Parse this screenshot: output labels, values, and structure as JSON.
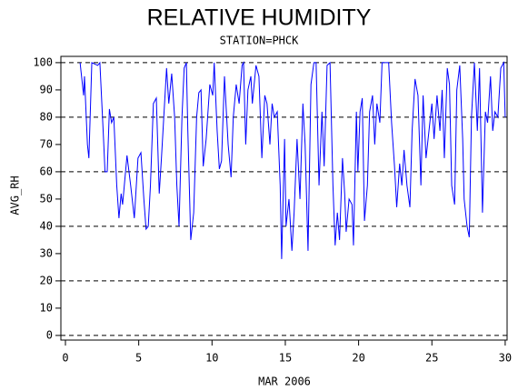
{
  "chart_data": {
    "type": "line",
    "title": "RELATIVE HUMIDITY",
    "subtitle": "STATION=PHCK",
    "x_label": "MAR 2006",
    "y_label": "AVG_RH",
    "xlim": [
      -0.31,
      30.13
    ],
    "ylim": [
      -1.7,
      102.3
    ],
    "xticks": [
      0,
      5,
      10,
      15,
      20,
      25,
      30
    ],
    "yticks": [
      0,
      10,
      20,
      30,
      40,
      50,
      60,
      70,
      80,
      90,
      100
    ],
    "ygrid": [
      0,
      20,
      40,
      60,
      80,
      100
    ],
    "x": [
      1.0,
      1.24,
      1.3,
      1.5,
      1.6,
      1.8,
      2.2,
      2.35,
      2.6,
      2.7,
      2.85,
      3.0,
      3.15,
      3.3,
      3.5,
      3.65,
      3.8,
      3.9,
      4.2,
      4.45,
      4.7,
      4.95,
      5.15,
      5.35,
      5.5,
      5.65,
      5.8,
      6.0,
      6.2,
      6.4,
      6.55,
      6.9,
      7.05,
      7.25,
      7.45,
      7.6,
      7.75,
      7.95,
      8.1,
      8.25,
      8.35,
      8.55,
      8.75,
      8.95,
      9.1,
      9.25,
      9.4,
      9.6,
      9.85,
      10.05,
      10.15,
      10.35,
      10.5,
      10.65,
      10.85,
      11.1,
      11.3,
      11.45,
      11.65,
      11.85,
      12.05,
      12.15,
      12.3,
      12.45,
      12.65,
      12.75,
      13.0,
      13.2,
      13.4,
      13.6,
      13.75,
      13.95,
      14.1,
      14.25,
      14.45,
      14.65,
      14.75,
      14.95,
      15.05,
      15.25,
      15.45,
      15.6,
      15.8,
      16.0,
      16.2,
      16.35,
      16.55,
      16.75,
      16.95,
      17.1,
      17.3,
      17.5,
      17.65,
      17.85,
      18.05,
      18.25,
      18.4,
      18.55,
      18.7,
      18.9,
      19.05,
      19.15,
      19.35,
      19.55,
      19.65,
      19.85,
      19.95,
      20.1,
      20.25,
      20.4,
      20.6,
      20.75,
      20.95,
      21.1,
      21.25,
      21.45,
      21.6,
      21.8,
      22.05,
      22.25,
      22.45,
      22.6,
      22.8,
      22.95,
      23.1,
      23.3,
      23.5,
      23.65,
      23.85,
      24.05,
      24.25,
      24.4,
      24.6,
      24.8,
      25.0,
      25.15,
      25.35,
      25.55,
      25.7,
      25.85,
      26.05,
      26.2,
      26.35,
      26.55,
      26.7,
      26.9,
      27.1,
      27.2,
      27.4,
      27.55,
      27.7,
      27.9,
      28.1,
      28.25,
      28.45,
      28.65,
      28.8,
      29.0,
      29.15,
      29.3,
      29.5,
      29.7,
      29.9,
      30.0
    ],
    "series": [
      {
        "name": "AVG_RH",
        "color": "#0000ff",
        "values": [
          100,
          88,
          95,
          70,
          65,
          100,
          99,
          100,
          72,
          60,
          60,
          83,
          78,
          80,
          55,
          43,
          52,
          48,
          66,
          55,
          43,
          65,
          67,
          50,
          39,
          40,
          55,
          85,
          87,
          52,
          65,
          98,
          85,
          96,
          80,
          55,
          40,
          80,
          98,
          100,
          75,
          35,
          45,
          80,
          89,
          90,
          62,
          72,
          92,
          88,
          100,
          75,
          61,
          64,
          95,
          70,
          58,
          80,
          92,
          85,
          99,
          100,
          70,
          90,
          95,
          85,
          99,
          95,
          65,
          88,
          85,
          70,
          85,
          80,
          82,
          55,
          28,
          72,
          40,
          50,
          31,
          45,
          72,
          50,
          85,
          70,
          31,
          92,
          100,
          100,
          55,
          82,
          62,
          99,
          100,
          55,
          33,
          45,
          35,
          65,
          52,
          38,
          50,
          48,
          33,
          82,
          60,
          82,
          87,
          42,
          55,
          82,
          88,
          70,
          85,
          78,
          100,
          100,
          100,
          78,
          62,
          47,
          63,
          55,
          68,
          55,
          47,
          75,
          94,
          88,
          55,
          88,
          65,
          75,
          85,
          72,
          88,
          75,
          90,
          65,
          98,
          92,
          55,
          48,
          90,
          99,
          72,
          50,
          40,
          36,
          80,
          100,
          75,
          98,
          45,
          82,
          78,
          95,
          75,
          82,
          80,
          98,
          100,
          80
        ]
      }
    ]
  }
}
